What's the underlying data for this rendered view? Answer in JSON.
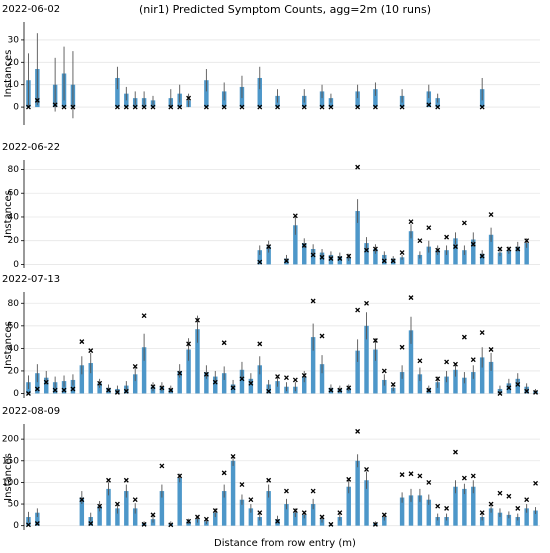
{
  "chart_data": [
    {
      "type": "bar",
      "title": "(nir1) Predicted Symptom Counts, agg=2m (10 runs)",
      "subtitle": "2022-06-02",
      "ylabel": "Instances",
      "color": "#4d97c9",
      "marker_color": "#000000",
      "grid": true,
      "categories": [
        null,
        null,
        null,
        null,
        null,
        null,
        null,
        null,
        null,
        null,
        null,
        null,
        null,
        null,
        null,
        null,
        null,
        null,
        null,
        null,
        null,
        null,
        null,
        null,
        null,
        null,
        null,
        null,
        null,
        null,
        null,
        null,
        null,
        null,
        null,
        null,
        null,
        null,
        null,
        null,
        null,
        null,
        null,
        null,
        null,
        null,
        null,
        null,
        null,
        null,
        null,
        null,
        null,
        null,
        null,
        null,
        null,
        null
      ],
      "values": [
        12,
        17,
        null,
        10,
        15,
        10,
        null,
        null,
        null,
        null,
        13,
        6,
        4,
        4,
        3,
        null,
        4,
        6,
        3,
        null,
        12,
        null,
        7,
        null,
        9,
        null,
        13,
        null,
        5,
        null,
        null,
        5,
        null,
        7,
        4,
        null,
        null,
        7,
        null,
        8,
        null,
        null,
        5,
        null,
        null,
        7,
        4,
        null,
        null,
        null,
        null,
        8,
        null,
        null,
        null,
        null,
        null,
        null
      ],
      "errors": [
        12,
        16,
        null,
        12,
        12,
        15,
        null,
        null,
        null,
        null,
        5,
        3,
        3,
        3,
        2,
        null,
        4,
        4,
        3,
        null,
        5,
        null,
        4,
        null,
        5,
        null,
        5,
        null,
        3,
        null,
        null,
        3,
        null,
        3,
        2,
        null,
        null,
        3,
        null,
        3,
        null,
        null,
        3,
        null,
        null,
        3,
        2,
        null,
        null,
        null,
        null,
        5,
        null,
        null,
        null,
        null,
        null,
        null
      ],
      "markers": [
        0,
        3,
        null,
        1,
        0,
        0,
        null,
        null,
        null,
        null,
        0,
        0,
        0,
        0,
        0,
        null,
        0,
        0,
        4,
        null,
        0,
        null,
        0,
        null,
        0,
        null,
        0,
        null,
        0,
        null,
        null,
        0,
        null,
        0,
        0,
        null,
        null,
        0,
        null,
        0,
        null,
        null,
        0,
        null,
        null,
        1,
        0,
        null,
        null,
        null,
        null,
        0,
        null,
        null,
        null,
        null,
        null,
        null
      ],
      "ylim": [
        -8,
        38
      ],
      "yticks": [
        0,
        10,
        20,
        30
      ]
    },
    {
      "type": "bar",
      "subtitle": "2022-06-22",
      "ylabel": "Instances",
      "color": "#4d97c9",
      "marker_color": "#000000",
      "grid": true,
      "categories": [
        null,
        null,
        null,
        null,
        null,
        null,
        null,
        null,
        null,
        null,
        null,
        null,
        null,
        null,
        null,
        null,
        null,
        null,
        null,
        null,
        null,
        null,
        null,
        null,
        null,
        null,
        null,
        null,
        null,
        null,
        null,
        null,
        null,
        null,
        null,
        null,
        null,
        null,
        null,
        null,
        null,
        null,
        null,
        null,
        null,
        null,
        null,
        null,
        null,
        null,
        null,
        null,
        null,
        null,
        null,
        null,
        null,
        null
      ],
      "values": [
        null,
        null,
        null,
        null,
        null,
        null,
        null,
        null,
        null,
        null,
        null,
        null,
        null,
        null,
        null,
        null,
        null,
        null,
        null,
        null,
        null,
        null,
        null,
        null,
        null,
        null,
        12,
        15,
        null,
        5,
        33,
        18,
        13,
        10,
        8,
        7,
        6,
        45,
        18,
        13,
        8,
        5,
        6,
        28,
        8,
        15,
        12,
        12,
        22,
        12,
        21,
        9,
        25,
        10,
        12,
        15,
        18,
        null
      ],
      "errors": [
        null,
        null,
        null,
        null,
        null,
        null,
        null,
        null,
        null,
        null,
        null,
        null,
        null,
        null,
        null,
        null,
        null,
        null,
        null,
        null,
        null,
        null,
        null,
        null,
        null,
        null,
        4,
        5,
        null,
        3,
        8,
        4,
        4,
        3,
        3,
        3,
        3,
        10,
        5,
        4,
        3,
        2,
        2,
        6,
        3,
        5,
        4,
        4,
        5,
        4,
        6,
        3,
        6,
        3,
        3,
        4,
        4,
        null
      ],
      "markers": [
        null,
        null,
        null,
        null,
        null,
        null,
        null,
        null,
        null,
        null,
        null,
        null,
        null,
        null,
        null,
        null,
        null,
        null,
        null,
        null,
        null,
        null,
        null,
        null,
        null,
        null,
        2,
        15,
        null,
        3,
        41,
        16,
        8,
        6,
        5,
        5,
        7,
        82,
        12,
        13,
        3,
        3,
        10,
        36,
        20,
        31,
        12,
        23,
        15,
        35,
        17,
        7,
        42,
        13,
        13,
        13,
        20,
        null
      ],
      "ylim": [
        -3,
        88
      ],
      "yticks": [
        0,
        20,
        40,
        60,
        80
      ]
    },
    {
      "type": "bar",
      "subtitle": "2022-07-13",
      "ylabel": "Instances",
      "color": "#4d97c9",
      "marker_color": "#000000",
      "grid": true,
      "categories": [
        null,
        null,
        null,
        null,
        null,
        null,
        null,
        null,
        null,
        null,
        null,
        null,
        null,
        null,
        null,
        null,
        null,
        null,
        null,
        null,
        null,
        null,
        null,
        null,
        null,
        null,
        null,
        null,
        null,
        null,
        null,
        null,
        null,
        null,
        null,
        null,
        null,
        null,
        null,
        null,
        null,
        null,
        null,
        null,
        null,
        null,
        null,
        null,
        null,
        null,
        null,
        null,
        null,
        null,
        null,
        null,
        null,
        null
      ],
      "values": [
        10,
        18,
        14,
        10,
        11,
        12,
        25,
        27,
        9,
        5,
        4,
        7,
        17,
        41,
        6,
        6,
        4,
        20,
        39,
        57,
        19,
        15,
        18,
        8,
        21,
        13,
        25,
        8,
        11,
        6,
        6,
        15,
        50,
        26,
        5,
        4,
        5,
        38,
        60,
        39,
        12,
        5,
        19,
        56,
        17,
        4,
        10,
        15,
        21,
        14,
        19,
        32,
        28,
        4,
        9,
        13,
        6,
        2
      ],
      "errors": [
        6,
        8,
        6,
        5,
        5,
        5,
        8,
        9,
        4,
        3,
        3,
        4,
        6,
        12,
        4,
        4,
        3,
        6,
        10,
        12,
        6,
        5,
        6,
        4,
        7,
        5,
        8,
        4,
        5,
        4,
        4,
        5,
        12,
        8,
        3,
        3,
        3,
        10,
        12,
        10,
        5,
        3,
        6,
        12,
        6,
        3,
        5,
        5,
        6,
        5,
        6,
        9,
        8,
        3,
        4,
        5,
        3,
        2
      ],
      "markers": [
        0,
        4,
        10,
        3,
        3,
        4,
        46,
        38,
        9,
        3,
        1,
        2,
        24,
        69,
        6,
        5,
        3,
        18,
        44,
        65,
        17,
        10,
        45,
        5,
        13,
        9,
        44,
        2,
        15,
        14,
        12,
        16,
        82,
        51,
        3,
        3,
        5,
        74,
        80,
        47,
        20,
        8,
        41,
        85,
        29,
        3,
        13,
        28,
        26,
        50,
        30,
        54,
        39,
        0,
        5,
        8,
        2,
        1
      ],
      "ylim": [
        -4,
        90
      ],
      "yticks": [
        0,
        20,
        40,
        60,
        80
      ]
    },
    {
      "type": "bar",
      "subtitle": "2022-08-09",
      "ylabel": "Instances",
      "xlabel": "Distance from row entry (m)",
      "color": "#4d97c9",
      "marker_color": "#000000",
      "grid": true,
      "categories": [
        null,
        null,
        null,
        null,
        null,
        null,
        null,
        null,
        null,
        null,
        null,
        null,
        null,
        null,
        null,
        null,
        null,
        null,
        null,
        null,
        null,
        null,
        null,
        null,
        null,
        null,
        null,
        null,
        null,
        null,
        null,
        null,
        null,
        null,
        null,
        null,
        null,
        null,
        null,
        null,
        null,
        null,
        null,
        null,
        null,
        null,
        null,
        null,
        null,
        null,
        null,
        null,
        null,
        null,
        null,
        null,
        null,
        null
      ],
      "values": [
        20,
        30,
        null,
        null,
        null,
        null,
        65,
        20,
        45,
        85,
        40,
        80,
        40,
        5,
        15,
        80,
        5,
        110,
        10,
        15,
        10,
        30,
        80,
        150,
        60,
        40,
        20,
        80,
        15,
        50,
        30,
        25,
        50,
        15,
        2,
        20,
        90,
        150,
        105,
        5,
        20,
        null,
        65,
        70,
        70,
        60,
        20,
        20,
        90,
        85,
        90,
        20,
        40,
        30,
        25,
        20,
        40,
        35
      ],
      "errors": [
        12,
        10,
        null,
        null,
        null,
        null,
        15,
        10,
        12,
        15,
        12,
        15,
        12,
        5,
        8,
        15,
        5,
        10,
        6,
        8,
        6,
        10,
        15,
        12,
        12,
        10,
        8,
        15,
        8,
        12,
        10,
        8,
        12,
        8,
        3,
        8,
        15,
        15,
        20,
        5,
        8,
        null,
        12,
        15,
        15,
        12,
        8,
        8,
        15,
        12,
        15,
        8,
        10,
        10,
        8,
        8,
        10,
        8
      ],
      "markers": [
        2,
        5,
        null,
        null,
        null,
        null,
        60,
        5,
        45,
        105,
        50,
        105,
        60,
        3,
        25,
        138,
        2,
        115,
        10,
        20,
        15,
        35,
        122,
        160,
        95,
        60,
        30,
        105,
        10,
        80,
        35,
        30,
        80,
        20,
        3,
        30,
        107,
        218,
        130,
        3,
        25,
        null,
        118,
        120,
        115,
        100,
        45,
        40,
        170,
        110,
        115,
        30,
        50,
        75,
        68,
        40,
        60,
        98
      ],
      "ylim": [
        -10,
        235
      ],
      "yticks": [
        0,
        50,
        100,
        150,
        200
      ]
    }
  ]
}
